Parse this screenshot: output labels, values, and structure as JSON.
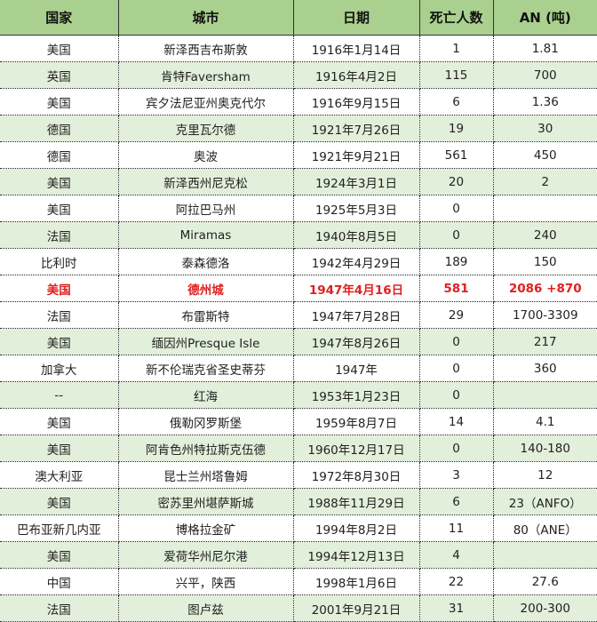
{
  "colors": {
    "header_bg": "#a9d08e",
    "alt_row_bg": "#e2efda",
    "highlight_text": "#e02020"
  },
  "headers": [
    "国家",
    "城市",
    "日期",
    "死亡人数",
    "AN (吨)"
  ],
  "rows": [
    [
      "美国",
      "新泽西吉布斯敦",
      "1916年1月14日",
      "1",
      "1.81"
    ],
    [
      "英国",
      "肯特Faversham",
      "1916年4月2日",
      "115",
      "700"
    ],
    [
      "美国",
      "宾夕法尼亚州奥克代尔",
      "1916年9月15日",
      "6",
      "1.36"
    ],
    [
      "德国",
      "克里瓦尔德",
      "1921年7月26日",
      "19",
      "30"
    ],
    [
      "德国",
      "奥波",
      "1921年9月21日",
      "561",
      "450"
    ],
    [
      "美国",
      "新泽西州尼克松",
      "1924年3月1日",
      "20",
      "2"
    ],
    [
      "美国",
      "阿拉巴马州",
      "1925年5月3日",
      "0",
      ""
    ],
    [
      "法国",
      "Miramas",
      "1940年8月5日",
      "0",
      "240"
    ],
    [
      "比利时",
      "泰森德洛",
      "1942年4月29日",
      "189",
      "150"
    ],
    [
      "美国",
      "德州城",
      "1947年4月16日",
      "581",
      "2086 +870"
    ],
    [
      "法国",
      "布雷斯特",
      "1947年7月28日",
      "29",
      "1700-3309"
    ],
    [
      "美国",
      "缅因州Presque Isle",
      "1947年8月26日",
      "0",
      "217"
    ],
    [
      "加拿大",
      "新不伦瑞克省圣史蒂芬",
      "1947年",
      "0",
      "360"
    ],
    [
      "--",
      "红海",
      "1953年1月23日",
      "0",
      ""
    ],
    [
      "美国",
      "俄勒冈罗斯堡",
      "1959年8月7日",
      "14",
      "4.1"
    ],
    [
      "美国",
      "阿肯色州特拉斯克伍德",
      "1960年12月17日",
      "0",
      "140-180"
    ],
    [
      "澳大利亚",
      "昆士兰州塔鲁姆",
      "1972年8月30日",
      "3",
      "12"
    ],
    [
      "美国",
      "密苏里州堪萨斯城",
      "1988年11月29日",
      "6",
      "23（ANFO）"
    ],
    [
      "巴布亚新几内亚",
      "博格拉金矿",
      "1994年8月2日",
      "11",
      "80（ANE）"
    ],
    [
      "美国",
      "爱荷华州尼尔港",
      "1994年12月13日",
      "4",
      ""
    ],
    [
      "中国",
      "兴平，陕西",
      "1998年1月6日",
      "22",
      "27.6"
    ],
    [
      "法国",
      "图卢兹",
      "2001年9月21日",
      "31",
      "200-300"
    ]
  ],
  "highlight_row": 9
}
